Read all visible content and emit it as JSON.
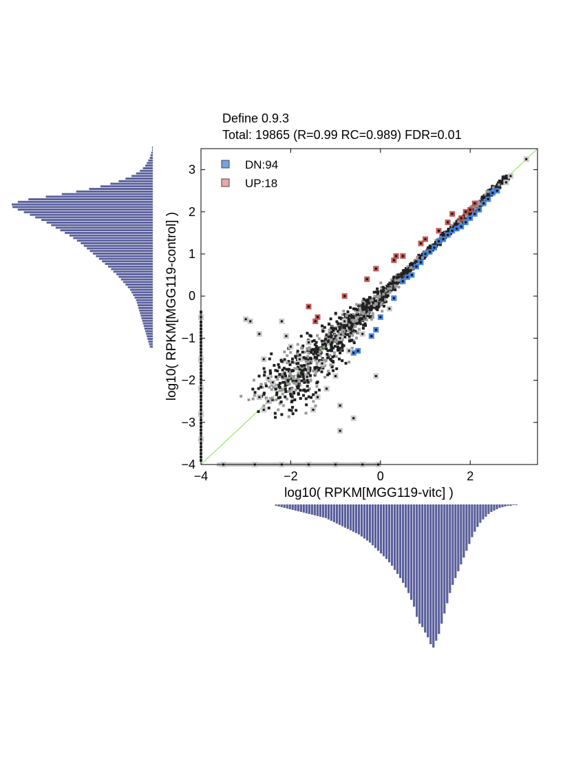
{
  "chart_data": {
    "type": "scatter",
    "title": "Define 0.9.3",
    "subtitle": "Total: 19865 (R=0.99 RC=0.989) FDR=0.01",
    "xlabel": "log10( RPKM[MGG119-vitc] )",
    "ylabel": "log10( RPKM[MGG119-control] )",
    "xlim": [
      -4,
      3.5
    ],
    "ylim": [
      -4,
      3.5
    ],
    "xticks": [
      -4,
      -2,
      0,
      2
    ],
    "yticks": [
      -4,
      -3,
      -2,
      -1,
      0,
      1,
      2,
      3
    ],
    "diagonal_line": {
      "from": [
        -4,
        -4
      ],
      "to": [
        3.5,
        3.5
      ],
      "color": "#7fe44a"
    },
    "colors": {
      "dn": "#3f7fe0",
      "up": "#c0504d",
      "ns": "#c8c8c8",
      "hist": "#5a5f9c",
      "diag": "#7fe44a"
    },
    "legend": {
      "position": "top-left",
      "items": [
        {
          "label": "DN:94",
          "color": "#6fa4e8"
        },
        {
          "label": "UP:18",
          "color": "#e8a7a6"
        }
      ]
    },
    "series": [
      {
        "name": "DN:94",
        "points": [
          [
            0.3,
            -0.05
          ],
          [
            0.5,
            0.35
          ],
          [
            0.6,
            0.45
          ],
          [
            0.8,
            0.7
          ],
          [
            0.9,
            0.8
          ],
          [
            1.0,
            1.0
          ],
          [
            1.1,
            1.05
          ],
          [
            1.2,
            1.15
          ],
          [
            1.3,
            1.3
          ],
          [
            1.5,
            1.45
          ],
          [
            1.6,
            1.55
          ],
          [
            1.7,
            1.6
          ],
          [
            1.8,
            1.65
          ],
          [
            1.9,
            1.75
          ],
          [
            2.0,
            1.85
          ],
          [
            2.1,
            1.95
          ],
          [
            2.2,
            2.05
          ],
          [
            2.3,
            2.2
          ],
          [
            2.4,
            2.3
          ],
          [
            2.5,
            2.45
          ],
          [
            0.0,
            -0.5
          ],
          [
            -0.1,
            -0.8
          ],
          [
            -0.2,
            -0.95
          ],
          [
            -0.5,
            -1.3
          ],
          [
            -0.6,
            -1.35
          ],
          [
            0.7,
            0.5
          ],
          [
            1.4,
            1.35
          ],
          [
            2.6,
            2.5
          ]
        ]
      },
      {
        "name": "UP:18",
        "points": [
          [
            -1.6,
            -0.25
          ],
          [
            -1.4,
            -0.5
          ],
          [
            -1.45,
            -0.6
          ],
          [
            -0.8,
            0.0
          ],
          [
            -0.3,
            0.4
          ],
          [
            -0.1,
            0.65
          ],
          [
            0.3,
            0.85
          ],
          [
            0.35,
            0.95
          ],
          [
            0.5,
            0.95
          ],
          [
            0.9,
            1.25
          ],
          [
            1.0,
            1.35
          ],
          [
            1.3,
            1.55
          ],
          [
            1.5,
            1.75
          ],
          [
            1.6,
            1.95
          ],
          [
            1.8,
            1.85
          ],
          [
            1.9,
            2.0
          ],
          [
            2.0,
            2.05
          ],
          [
            2.1,
            2.2
          ]
        ]
      },
      {
        "name": "",
        "points": [
          [
            -2.9,
            -0.6
          ],
          [
            -2.7,
            -0.9
          ],
          [
            -2.2,
            -0.6
          ],
          [
            -2.1,
            -0.95
          ],
          [
            -2.0,
            -1.2
          ],
          [
            -2.6,
            -1.5
          ],
          [
            -2.5,
            -1.95
          ],
          [
            -2.4,
            -2.05
          ],
          [
            -2.7,
            -2.4
          ],
          [
            -2.6,
            -2.7
          ],
          [
            -2.5,
            -2.5
          ],
          [
            -1.4,
            -2.4
          ],
          [
            -1.5,
            -2.7
          ],
          [
            -1.2,
            -2.2
          ],
          [
            -0.9,
            -2.6
          ],
          [
            -0.6,
            -2.9
          ],
          [
            -0.9,
            -3.2
          ],
          [
            -0.1,
            -1.9
          ],
          [
            -0.9,
            -1.0
          ],
          [
            -0.7,
            -1.3
          ],
          [
            0.2,
            -0.3
          ],
          [
            -3.0,
            -0.55
          ],
          [
            -1.8,
            -1.5
          ],
          [
            -1.6,
            -1.1
          ],
          [
            -1.3,
            -1.6
          ],
          [
            -1.0,
            -1.9
          ],
          [
            -0.8,
            -0.6
          ],
          [
            -0.4,
            -0.9
          ],
          [
            -4,
            -1.5
          ],
          [
            -4,
            -2.2
          ],
          [
            -4,
            -2.8
          ],
          [
            -4,
            -3.4
          ],
          [
            -4,
            -0.5
          ],
          [
            -3.5,
            -4
          ],
          [
            -2.8,
            -4
          ],
          [
            -2.2,
            -4
          ],
          [
            -1.6,
            -4
          ],
          [
            -1.0,
            -4
          ],
          [
            -0.4,
            -4
          ],
          [
            -0.05,
            -4
          ],
          [
            3.25,
            3.25
          ],
          [
            2.9,
            2.85
          ],
          [
            2.8,
            2.7
          ]
        ]
      }
    ],
    "histogram_y": {
      "bin_start": 3.55,
      "bin_width": 0.0614,
      "counts": [
        1,
        1,
        2,
        3,
        4,
        6,
        8,
        10,
        13,
        17,
        22,
        28,
        36,
        45,
        56,
        69,
        84,
        101,
        120,
        141,
        164,
        178,
        186,
        185,
        178,
        170,
        162,
        155,
        147,
        140,
        134,
        128,
        122,
        116,
        110,
        105,
        100,
        95,
        91,
        87,
        83,
        79,
        75,
        71,
        67,
        63,
        59,
        55,
        52,
        48,
        45,
        42,
        39,
        36,
        33,
        30,
        28,
        26,
        24,
        22,
        21,
        20,
        19,
        18,
        17,
        16,
        15,
        14,
        13,
        12,
        11,
        10,
        9,
        8,
        7,
        6,
        5,
        4
      ]
    },
    "histogram_x": {
      "bin_start": -2.35,
      "bin_width": 0.0615,
      "counts": [
        2,
        3,
        4,
        5,
        6,
        7,
        8,
        9,
        10,
        11,
        12,
        13,
        14,
        15,
        16,
        17,
        18,
        19,
        20,
        22,
        24,
        26,
        28,
        30,
        32,
        34,
        36,
        38,
        40,
        42,
        44,
        47,
        50,
        53,
        56,
        60,
        64,
        68,
        72,
        76,
        80,
        85,
        90,
        96,
        102,
        108,
        115,
        122,
        130,
        140,
        150,
        165,
        175,
        180,
        188,
        195,
        205,
        210,
        200,
        190,
        175,
        160,
        145,
        130,
        118,
        108,
        98,
        88,
        78,
        68,
        58,
        48,
        40,
        33,
        27,
        22,
        18,
        14,
        11,
        9,
        7,
        5,
        4,
        3,
        2,
        2,
        1,
        1
      ]
    }
  }
}
